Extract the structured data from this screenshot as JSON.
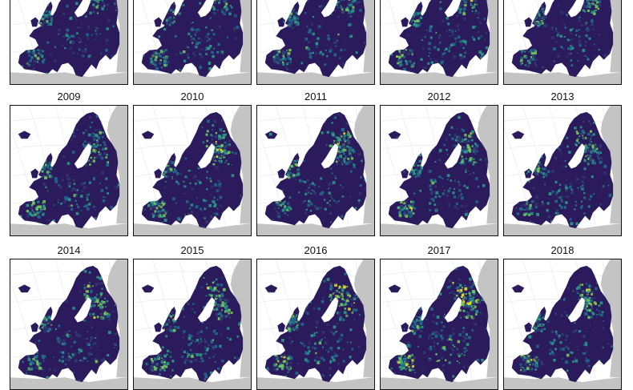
{
  "figure": {
    "colors": {
      "background": "#ffffff",
      "land_outside": "#c4c4c4",
      "sea": "#ffffff",
      "graticule": "#e6e6e6",
      "border": "#111111",
      "low": "#2b1a5c",
      "mid_low": "#30386f",
      "mid": "#1f6b8a",
      "mid_high": "#2a9a86",
      "high": "#76c95a",
      "max": "#e8e226"
    },
    "rows": [
      {
        "panels": [
          {
            "year": "",
            "intensity": 0.35
          },
          {
            "year": "",
            "intensity": 0.45
          },
          {
            "year": "",
            "intensity": 0.4
          },
          {
            "year": "",
            "intensity": 0.5
          },
          {
            "year": "",
            "intensity": 0.45
          }
        ]
      },
      {
        "panels": [
          {
            "year": "2009",
            "intensity": 0.45
          },
          {
            "year": "2010",
            "intensity": 0.55
          },
          {
            "year": "2011",
            "intensity": 0.45
          },
          {
            "year": "2012",
            "intensity": 0.55
          },
          {
            "year": "2013",
            "intensity": 0.4
          }
        ]
      },
      {
        "panels": [
          {
            "year": "2014",
            "intensity": 0.55
          },
          {
            "year": "2015",
            "intensity": 0.5
          },
          {
            "year": "2016",
            "intensity": 0.6
          },
          {
            "year": "2017",
            "intensity": 0.75
          },
          {
            "year": "2018",
            "intensity": 0.55
          }
        ]
      }
    ]
  }
}
